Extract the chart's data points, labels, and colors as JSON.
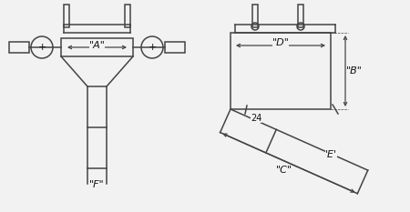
{
  "bg_color": "#f2f2f2",
  "line_color": "#444444",
  "text_color": "#111111",
  "fig_width": 4.5,
  "fig_height": 2.33,
  "dpi": 100,
  "labels": {
    "A": "\"A\"",
    "B": "\"B\"",
    "C": "\"C\"",
    "D": "\"D\"",
    "E": "'E'",
    "F": "\"F\""
  },
  "angle_label": "24"
}
